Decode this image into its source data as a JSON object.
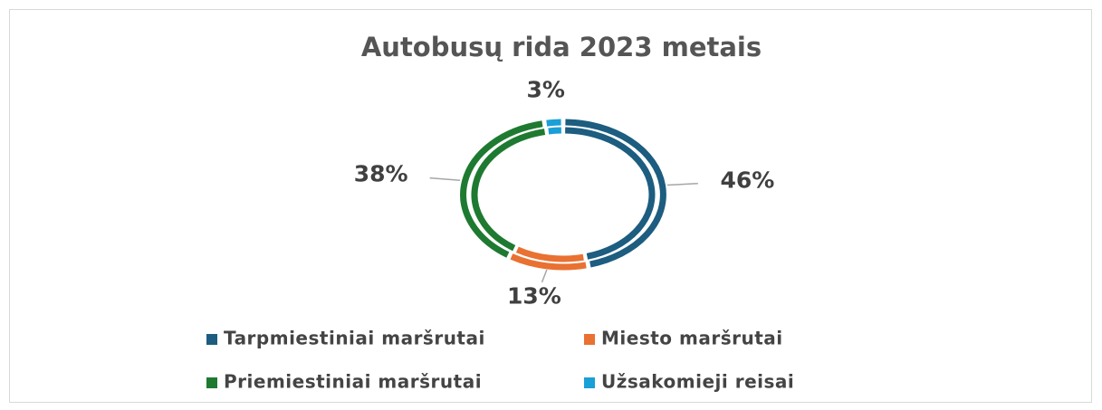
{
  "chart_data": {
    "type": "doughnut",
    "title": "Autobusų rida 2023 metais",
    "categories": [
      "Tarpmiestiniai maršrutai",
      "Miesto maršrutai",
      "Priemiestiniai maršrutai",
      "Užsakomieji reisai"
    ],
    "values": [
      46,
      13,
      38,
      3
    ],
    "value_labels": [
      "46%",
      "13%",
      "38%",
      "3%"
    ],
    "colors": [
      "#1c5d80",
      "#e97132",
      "#1e7a30",
      "#1a9fd6"
    ]
  }
}
